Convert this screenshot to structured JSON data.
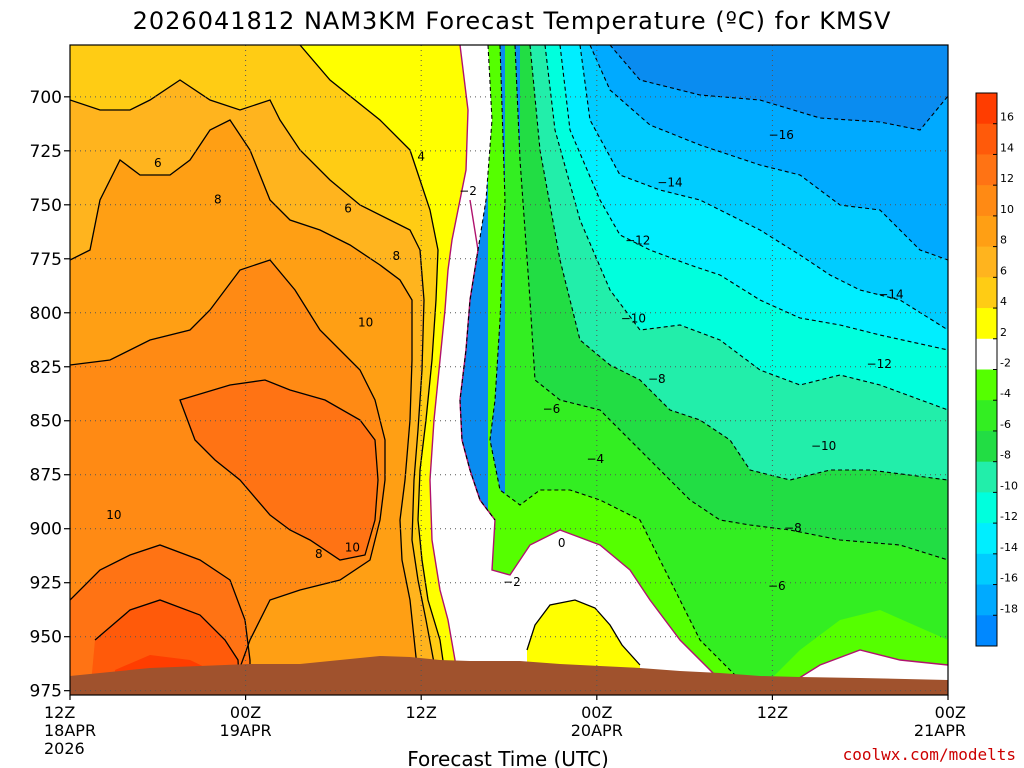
{
  "chart_data": {
    "type": "heatmap",
    "title": "2026041812 NAM3KM Forecast Temperature (ºC) for KMSV",
    "xlabel": "Forecast Time (UTC)",
    "ylabel": "",
    "credit": "coolwx.com/modelts",
    "x_hours": [
      0,
      60
    ],
    "x_ticks": [
      {
        "hour": 0,
        "lines": [
          "12Z",
          "18APR",
          "2026"
        ]
      },
      {
        "hour": 12,
        "lines": [
          "00Z",
          "19APR"
        ]
      },
      {
        "hour": 24,
        "lines": [
          "12Z"
        ]
      },
      {
        "hour": 36,
        "lines": [
          "00Z",
          "20APR"
        ]
      },
      {
        "hour": 48,
        "lines": [
          "12Z"
        ]
      },
      {
        "hour": 60,
        "lines": [
          "00Z",
          "21APR"
        ]
      }
    ],
    "y_range_hpa": [
      676,
      977
    ],
    "y_ticks": [
      700,
      725,
      750,
      775,
      800,
      825,
      850,
      875,
      900,
      925,
      950,
      975
    ],
    "colorbar": {
      "ticks": [
        "16",
        "14",
        "12",
        "10",
        "8",
        "6",
        "4",
        "2",
        "-2",
        "-4",
        "-6",
        "-8",
        "-10",
        "-12",
        "-14",
        "-16",
        "-18"
      ],
      "colors": [
        "#ff3d00",
        "#ff5a0a",
        "#ff7314",
        "#ff8a14",
        "#ff9f14",
        "#ffb41e",
        "#ffcc14",
        "#ffff00",
        "#ffffff",
        "#55ff00",
        "#33ee22",
        "#22dd44",
        "#22eeaa",
        "#00ffdd",
        "#00eeff",
        "#00ccff",
        "#00aaff",
        "#0088ff"
      ]
    },
    "terrain_color": "#a0522d",
    "contour_labels": [
      {
        "text": "6",
        "hour": 6,
        "p": 732
      },
      {
        "text": "8",
        "hour": 10.1,
        "p": 749
      },
      {
        "text": "6",
        "hour": 19,
        "p": 753
      },
      {
        "text": "4",
        "hour": 24,
        "p": 729
      },
      {
        "text": "−2",
        "hour": 27.2,
        "p": 745
      },
      {
        "text": "8",
        "hour": 22.3,
        "p": 775
      },
      {
        "text": "10",
        "hour": 20.2,
        "p": 806
      },
      {
        "text": "10",
        "hour": 3,
        "p": 895
      },
      {
        "text": "8",
        "hour": 17,
        "p": 913
      },
      {
        "text": "10",
        "hour": 19.3,
        "p": 910
      },
      {
        "text": "−6",
        "hour": 32.9,
        "p": 846
      },
      {
        "text": "−4",
        "hour": 35.9,
        "p": 869
      },
      {
        "text": "0",
        "hour": 33.6,
        "p": 908
      },
      {
        "text": "−2",
        "hour": 30.2,
        "p": 926
      },
      {
        "text": "−14",
        "hour": 41,
        "p": 741
      },
      {
        "text": "−12",
        "hour": 38.8,
        "p": 768
      },
      {
        "text": "−10",
        "hour": 38.5,
        "p": 804
      },
      {
        "text": "−8",
        "hour": 40.1,
        "p": 832
      },
      {
        "text": "−16",
        "hour": 48.6,
        "p": 719
      },
      {
        "text": "−14",
        "hour": 56.1,
        "p": 793
      },
      {
        "text": "−12",
        "hour": 55.3,
        "p": 825
      },
      {
        "text": "−10",
        "hour": 51.5,
        "p": 863
      },
      {
        "text": "−8",
        "hour": 49.4,
        "p": 901
      },
      {
        "text": "−6",
        "hour": 48.3,
        "p": 928
      }
    ]
  }
}
